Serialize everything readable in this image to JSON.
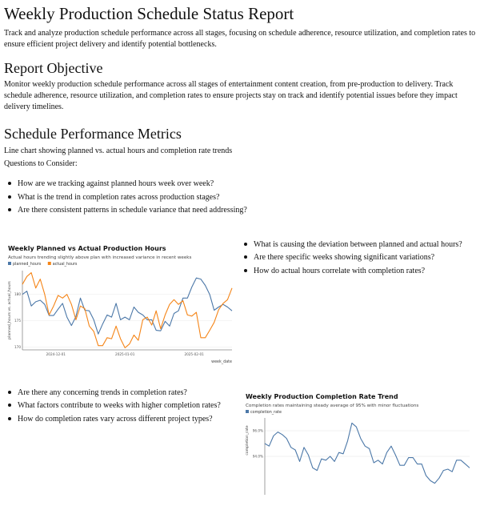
{
  "header": {
    "title": "Weekly Production Schedule Status Report",
    "intro": "Track and analyze production schedule performance across all stages, focusing on schedule adherence, resource utilization, and completion rates to ensure efficient project delivery and identify potential bottlenecks."
  },
  "objective": {
    "heading": "Report Objective",
    "text": "Monitor weekly production schedule performance across all stages of entertainment content creation, from pre-production to delivery. Track schedule adherence, resource utilization, and completion rates to ensure projects stay on track and identify potential issues before they impact delivery timelines."
  },
  "metrics": {
    "heading": "Schedule Performance Metrics",
    "description": "Line chart showing planned vs. actual hours and completion rate trends",
    "questions_label": "Questions to Consider:",
    "questions": [
      "How are we tracking against planned hours week over week?",
      "What is the trend in completion rates across production stages?",
      "Are there consistent patterns in schedule variance that need addressing?"
    ],
    "questions_right": [
      "What is causing the deviation between planned and actual hours?",
      "Are there specific weeks showing significant variations?",
      "How do actual hours correlate with completion rates?"
    ],
    "questions_left": [
      "Are there any concerning trends in completion rates?",
      "What factors contribute to weeks with higher completion rates?",
      "How do completion rates vary across different project types?"
    ]
  },
  "chart_data": [
    {
      "type": "line",
      "title": "Weekly Planned vs Actual Production Hours",
      "subtitle": "Actual hours trending slightly above plan with increased variance in recent weeks",
      "xlabel": "week_date",
      "ylabel": "planned_hours vs. actual_hours",
      "ylim": [
        169.5,
        184.5
      ],
      "yticks": [
        170,
        175,
        180
      ],
      "ytick_labels": [
        "170",
        "175",
        "180"
      ],
      "xticks": [
        "2024-12-01",
        "2025-01-01",
        "2025-02-01"
      ],
      "grid": true,
      "legend": "top-left",
      "x": [
        "2024-11-16",
        "2024-11-18",
        "2024-11-20",
        "2024-11-22",
        "2024-11-24",
        "2024-11-26",
        "2024-11-28",
        "2024-11-30",
        "2024-12-02",
        "2024-12-04",
        "2024-12-06",
        "2024-12-08",
        "2024-12-10",
        "2024-12-12",
        "2024-12-14",
        "2024-12-16",
        "2024-12-18",
        "2024-12-20",
        "2024-12-22",
        "2024-12-24",
        "2024-12-26",
        "2024-12-28",
        "2024-12-30",
        "2025-01-01",
        "2025-01-03",
        "2025-01-05",
        "2025-01-07",
        "2025-01-09",
        "2025-01-11",
        "2025-01-13",
        "2025-01-15",
        "2025-01-17",
        "2025-01-19",
        "2025-01-21",
        "2025-01-23",
        "2025-01-25",
        "2025-01-27",
        "2025-01-29",
        "2025-01-31",
        "2025-02-02",
        "2025-02-04",
        "2025-02-06",
        "2025-02-08",
        "2025-02-10",
        "2025-02-12",
        "2025-02-14",
        "2025-02-16",
        "2025-02-18"
      ],
      "series": [
        {
          "name": "planned_hours",
          "color": "#4c78a8",
          "values": [
            180.0,
            180.6,
            177.8,
            178.6,
            178.9,
            178.1,
            176.0,
            176.0,
            177.2,
            178.3,
            175.7,
            174.1,
            175.8,
            179.3,
            177.0,
            176.9,
            175.2,
            172.5,
            174.4,
            176.1,
            175.7,
            178.3,
            175.2,
            175.7,
            175.2,
            177.6,
            176.6,
            176.1,
            175.2,
            175.2,
            173.2,
            173.1,
            174.9,
            174.0,
            176.4,
            176.9,
            179.3,
            179.3,
            181.4,
            183.1,
            182.9,
            181.7,
            180.0,
            177.0,
            177.6,
            178.1,
            177.6,
            176.9
          ]
        },
        {
          "name": "actual_hours",
          "color": "#f58518",
          "values": [
            181.9,
            183.4,
            184.1,
            181.2,
            182.9,
            180.0,
            176.1,
            177.8,
            179.8,
            179.3,
            180.0,
            178.1,
            175.2,
            177.8,
            177.3,
            174.0,
            173.0,
            170.3,
            170.3,
            171.8,
            171.6,
            174.0,
            171.6,
            169.9,
            170.6,
            172.3,
            171.3,
            175.2,
            175.7,
            174.2,
            176.9,
            173.5,
            176.1,
            178.1,
            179.0,
            178.1,
            178.8,
            176.1,
            175.9,
            176.6,
            171.8,
            171.8,
            173.2,
            174.7,
            177.1,
            178.3,
            179.0,
            181.2
          ]
        }
      ]
    },
    {
      "type": "line",
      "title": "Weekly Production Completion Rate Trend",
      "subtitle": "Completion rates maintaining steady average of 95% with minor fluctuations",
      "ylabel": "completion_rate",
      "ylim": [
        91,
        97
      ],
      "yticks": [
        94,
        96
      ],
      "ytick_labels": [
        "94.0%",
        "96.0%"
      ],
      "grid": true,
      "legend": "top-left",
      "x": [
        "2024-11-16",
        "2024-11-18",
        "2024-11-20",
        "2024-11-22",
        "2024-11-24",
        "2024-11-26",
        "2024-11-28",
        "2024-11-30",
        "2024-12-02",
        "2024-12-04",
        "2024-12-06",
        "2024-12-08",
        "2024-12-10",
        "2024-12-12",
        "2024-12-14",
        "2024-12-16",
        "2024-12-18",
        "2024-12-20",
        "2024-12-22",
        "2024-12-24",
        "2024-12-26",
        "2024-12-28",
        "2024-12-30",
        "2025-01-01",
        "2025-01-03",
        "2025-01-05",
        "2025-01-07",
        "2025-01-09",
        "2025-01-11",
        "2025-01-13",
        "2025-01-15",
        "2025-01-17",
        "2025-01-19",
        "2025-01-21",
        "2025-01-23",
        "2025-01-25",
        "2025-01-27",
        "2025-01-29",
        "2025-01-31",
        "2025-02-02",
        "2025-02-04",
        "2025-02-06",
        "2025-02-08",
        "2025-02-10",
        "2025-02-12",
        "2025-02-14",
        "2025-02-16",
        "2025-02-18"
      ],
      "series": [
        {
          "name": "completion_rate",
          "color": "#4c78a8",
          "values": [
            95.0,
            94.8,
            95.6,
            95.9,
            95.7,
            95.4,
            94.7,
            94.5,
            93.6,
            94.7,
            94.1,
            93.1,
            92.9,
            93.8,
            93.7,
            94.0,
            93.6,
            94.3,
            94.2,
            95.2,
            96.6,
            96.3,
            95.4,
            94.8,
            94.6,
            93.5,
            93.7,
            93.4,
            94.3,
            94.8,
            94.1,
            93.3,
            93.3,
            93.9,
            93.9,
            93.4,
            93.4,
            92.5,
            92.1,
            91.9,
            92.3,
            92.9,
            93.0,
            92.8,
            93.7,
            93.7,
            93.4,
            93.1
          ]
        }
      ]
    }
  ]
}
